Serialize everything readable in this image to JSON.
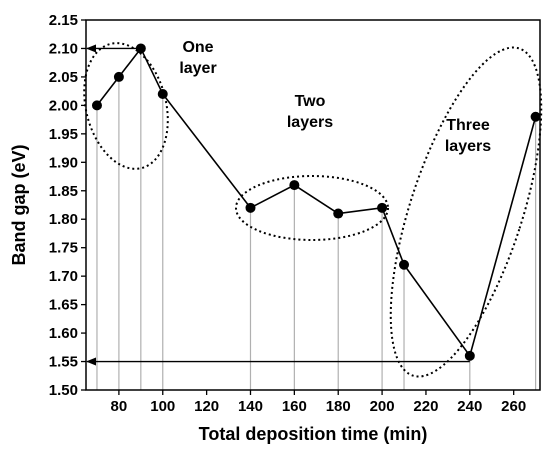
{
  "chart_data": {
    "type": "line",
    "title": "",
    "xlabel": "Total deposition time (min)",
    "ylabel": "Band gap (eV)",
    "xlim": [
      65,
      272
    ],
    "ylim": [
      1.5,
      2.15
    ],
    "xticks": [
      80,
      100,
      120,
      140,
      160,
      180,
      200,
      220,
      240,
      260
    ],
    "yticks": [
      1.5,
      1.55,
      1.6,
      1.65,
      1.7,
      1.75,
      1.8,
      1.85,
      1.9,
      1.95,
      2.0,
      2.05,
      2.1,
      2.15
    ],
    "grid": "vertical drop lines at each data point",
    "series": [
      {
        "x": [
          70,
          80,
          90,
          100,
          140,
          160,
          180,
          200,
          210,
          240,
          270
        ],
        "y": [
          2.0,
          2.05,
          2.1,
          2.02,
          1.82,
          1.86,
          1.81,
          1.82,
          1.72,
          1.56,
          1.98
        ],
        "color": "#000000"
      }
    ],
    "annotations": [
      {
        "label": "One layer",
        "lines": [
          "One",
          "layer"
        ]
      },
      {
        "label": "Two layers",
        "lines": [
          "Two",
          "layers"
        ]
      },
      {
        "label": "Three layers",
        "lines": [
          "Three",
          "layers"
        ]
      }
    ],
    "arrows": [
      {
        "from_x": 90,
        "to_x": 65,
        "y": 2.1
      },
      {
        "from_x": 240,
        "to_x": 65,
        "y": 1.55
      }
    ]
  }
}
